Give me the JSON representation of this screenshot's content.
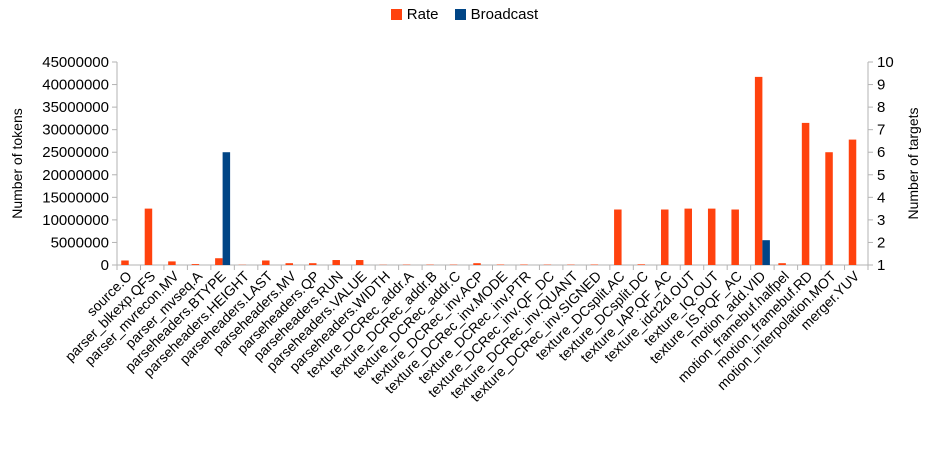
{
  "chart_data": {
    "type": "bar",
    "title": "",
    "xlabel": "",
    "ylabel": "Number of tokens",
    "y2label": "Number of targets",
    "ylim": [
      0,
      45000000
    ],
    "y2lim": [
      1,
      10
    ],
    "yticks": [
      "0",
      "5000000",
      "10000000",
      "15000000",
      "20000000",
      "25000000",
      "30000000",
      "35000000",
      "40000000",
      "45000000"
    ],
    "y2ticks": [
      "1",
      "2",
      "3",
      "4",
      "5",
      "6",
      "7",
      "8",
      "9",
      "10"
    ],
    "grid": false,
    "legend_position": "top-center",
    "categories": [
      "source.O",
      "parser_blkexp.QFS",
      "parser_mvrecon.MV",
      "parser_mvseq.A",
      "parseheaders.BTYPE",
      "parseheaders.HEIGHT",
      "parseheaders.LAST",
      "parseheaders.MV",
      "parseheaders.QP",
      "parseheaders.RUN",
      "parseheaders.VALUE",
      "parseheaders.WIDTH",
      "texture_DCRec_addr.A",
      "texture_DCRec_addr.B",
      "texture_DCRec_addr.C",
      "texture_DCRec_inv.ACP",
      "texture_DCRec_inv.MODE",
      "texture_DCRec_inv.PTR",
      "texture_DCRec_inv.QF_DC",
      "texture_DCRec_inv.QUANT",
      "texture_DCRec_inv.SIGNED",
      "texture_DCsplit.AC",
      "texture_DCsplit.DC",
      "texture_IAP.QF_AC",
      "texture_idct2d.OUT",
      "texture_IQ.OUT",
      "texture_IS.PQF_AC",
      "motion_add.VID",
      "motion_framebuf.halfpel",
      "motion_framebuf.RD",
      "motion_interpolation.MOT",
      "merger.YUV"
    ],
    "series": [
      {
        "name": "Rate",
        "axis": "left",
        "color": "#ff420e",
        "values": [
          1000000,
          12500000,
          800000,
          200000,
          1500000,
          50000,
          1000000,
          400000,
          400000,
          1100000,
          1100000,
          50000,
          80000,
          80000,
          80000,
          400000,
          100000,
          100000,
          80000,
          80000,
          100000,
          12300000,
          150000,
          12300000,
          12500000,
          12500000,
          12300000,
          41700000,
          400000,
          31500000,
          25000000,
          27800000
        ]
      },
      {
        "name": "Broadcast",
        "axis": "right",
        "color": "#004586",
        "values": [
          1,
          1,
          1,
          1,
          6,
          1,
          1,
          1,
          1,
          1,
          1,
          1,
          1,
          1,
          1,
          1,
          1,
          1,
          1,
          1,
          1,
          1,
          1,
          1,
          1,
          1,
          1,
          2.1,
          1,
          1,
          1,
          1
        ]
      }
    ]
  }
}
